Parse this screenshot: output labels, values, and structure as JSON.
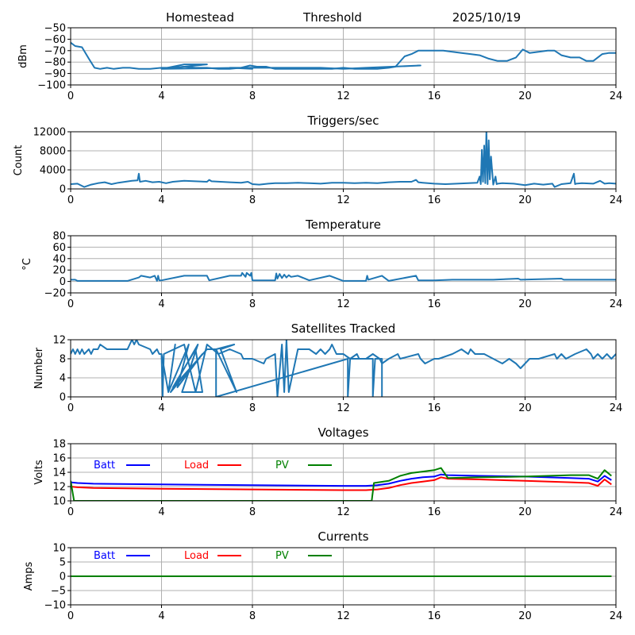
{
  "header": {
    "site": "Homestead",
    "threshold_label": "Threshold",
    "date": "2025/10/19"
  },
  "chart_data": [
    {
      "id": "signal",
      "type": "line",
      "title": "",
      "xlabel": "",
      "ylabel": "dBm",
      "xlim": [
        0,
        24
      ],
      "ylim": [
        -100,
        -50
      ],
      "xticks": [
        0,
        4,
        8,
        12,
        16,
        20,
        24
      ],
      "yticks": [
        -100,
        -90,
        -80,
        -70,
        -60,
        -50
      ],
      "ytick_labels": [
        "−100",
        "−90",
        "−80",
        "−70",
        "−60",
        "−50"
      ],
      "grid": true,
      "series": [
        {
          "name": "signal",
          "color": "#1f77b4",
          "x": [
            0,
            0.2,
            0.5,
            0.8,
            1.05,
            1.3,
            1.6,
            1.9,
            2.3,
            2.6,
            3.0,
            3.5,
            4.0,
            4.5,
            5.0,
            5.5,
            6.0,
            6.5,
            7.0,
            7.5,
            7.9,
            8.2,
            8.6,
            9.0,
            9.5,
            10.0,
            10.5,
            11.0,
            11.5,
            12.0,
            12.5,
            13.0,
            13.5,
            14.0,
            14.3,
            14.7,
            15.0,
            15.3,
            15.6,
            16.0,
            16.4,
            16.8,
            17.2,
            17.6,
            18.0,
            18.4,
            18.8,
            19.2,
            19.6,
            19.9,
            20.2,
            20.6,
            21.0,
            21.3,
            21.6,
            22.0,
            22.4,
            22.7,
            23.0,
            23.4,
            23.7,
            24.0
          ],
          "y": [
            -63,
            -66,
            -67,
            -77,
            -85,
            -86,
            -85,
            -86,
            -85,
            -85,
            -86,
            -86,
            -85,
            -85,
            -84,
            -85,
            -85,
            -86,
            -86,
            -85,
            -83,
            -84,
            -84,
            -86,
            -86,
            -86,
            -86,
            -86,
            -86,
            -85,
            -86,
            -86,
            -86,
            -85,
            -84,
            -75,
            -73,
            -70,
            -70,
            -70,
            -70,
            -71,
            -72,
            -73,
            -74,
            -77,
            -79,
            -79,
            -76,
            -69,
            -72,
            -71,
            -70,
            -70,
            -74,
            -76,
            -76,
            -79,
            -79,
            -73,
            -72,
            -72
          ]
        },
        {
          "name": "signal-overlap",
          "color": "#1f77b4",
          "x": [
            4.0,
            5.0,
            6.0,
            5.0,
            4.0,
            7.5,
            8.0,
            7.0,
            9.5,
            11.0,
            12.0,
            15.4,
            13.0,
            12.0
          ],
          "y": [
            -86,
            -82,
            -82,
            -84,
            -86,
            -85,
            -86,
            -85,
            -85,
            -85,
            -86,
            -83,
            -85,
            -86
          ]
        }
      ]
    },
    {
      "id": "triggers",
      "type": "line",
      "title": "Triggers/sec",
      "xlabel": "",
      "ylabel": "Count",
      "xlim": [
        0,
        24
      ],
      "ylim": [
        0,
        12000
      ],
      "xticks": [
        0,
        4,
        8,
        12,
        16,
        20,
        24
      ],
      "yticks": [
        0,
        4000,
        8000,
        12000
      ],
      "ytick_labels": [
        "0",
        "4000",
        "8000",
        "12000"
      ],
      "grid": true,
      "series": [
        {
          "name": "triggers",
          "color": "#1f77b4",
          "x": [
            0,
            0.3,
            0.6,
            0.9,
            1.2,
            1.5,
            1.8,
            2.1,
            2.4,
            2.7,
            2.95,
            3.0,
            3.05,
            3.3,
            3.6,
            3.9,
            4.2,
            4.5,
            5.0,
            5.5,
            6.0,
            6.1,
            6.2,
            6.6,
            7.0,
            7.5,
            7.8,
            8.0,
            8.3,
            8.7,
            9.0,
            9.5,
            10.0,
            10.5,
            11.0,
            11.5,
            12.0,
            12.5,
            13.0,
            13.5,
            14.0,
            14.5,
            15.0,
            15.2,
            15.3,
            15.5,
            16.0,
            16.5,
            17.0,
            17.5,
            17.9,
            18.0,
            18.05,
            18.1,
            18.15,
            18.2,
            18.25,
            18.3,
            18.35,
            18.4,
            18.45,
            18.5,
            18.6,
            18.7,
            18.75,
            18.8,
            19.0,
            19.5,
            20.0,
            20.4,
            20.8,
            21.2,
            21.3,
            21.6,
            22.0,
            22.15,
            22.2,
            22.25,
            22.5,
            23.0,
            23.3,
            23.5,
            23.7,
            24.0
          ],
          "y": [
            1000,
            1100,
            400,
            900,
            1200,
            1400,
            1000,
            1300,
            1500,
            1700,
            1800,
            3200,
            1500,
            1700,
            1400,
            1500,
            1200,
            1500,
            1700,
            1600,
            1500,
            1900,
            1600,
            1500,
            1400,
            1300,
            1500,
            1000,
            900,
            1100,
            1200,
            1200,
            1300,
            1200,
            1100,
            1300,
            1300,
            1200,
            1300,
            1200,
            1400,
            1500,
            1500,
            1900,
            1400,
            1300,
            1100,
            1000,
            1100,
            1200,
            1300,
            2600,
            1000,
            8200,
            1500,
            9100,
            1200,
            12400,
            1000,
            10200,
            2000,
            6800,
            900,
            2600,
            1000,
            1100,
            1200,
            1100,
            800,
            1100,
            900,
            1100,
            400,
            1000,
            1200,
            3200,
            1000,
            1100,
            1200,
            1100,
            1700,
            1100,
            1200,
            1100
          ]
        }
      ]
    },
    {
      "id": "temperature",
      "type": "line",
      "title": "Temperature",
      "xlabel": "",
      "ylabel": "°C",
      "xlim": [
        0,
        24
      ],
      "ylim": [
        -20,
        80
      ],
      "xticks": [
        0,
        4,
        8,
        12,
        16,
        20,
        24
      ],
      "yticks": [
        -20,
        0,
        20,
        40,
        60,
        80
      ],
      "ytick_labels": [
        "−20",
        "0",
        "20",
        "40",
        "60",
        "80"
      ],
      "grid": true,
      "series": [
        {
          "name": "temperature",
          "color": "#1f77b4",
          "x": [
            0,
            0.2,
            0.3,
            2.5,
            3.0,
            3.1,
            3.5,
            3.7,
            3.8,
            3.85,
            3.9,
            4.0,
            5.0,
            6.0,
            6.1,
            7.0,
            7.5,
            7.55,
            7.7,
            7.75,
            7.9,
            7.95,
            8.0,
            9.0,
            9.05,
            9.1,
            9.2,
            9.3,
            9.4,
            9.5,
            9.6,
            9.7,
            10.0,
            10.5,
            11.4,
            12.0,
            13.0,
            13.05,
            13.1,
            13.7,
            14.0,
            15.2,
            15.3,
            16.0,
            16.8,
            18.6,
            19.7,
            19.8,
            21.6,
            21.7,
            24.0
          ],
          "y": [
            3,
            3,
            1,
            1,
            7,
            10,
            7,
            10,
            1,
            10,
            2,
            2,
            10,
            10,
            2,
            10,
            10,
            15,
            8,
            15,
            10,
            15,
            2,
            2,
            14,
            5,
            13,
            6,
            12,
            7,
            11,
            8,
            10,
            2,
            10,
            1,
            1,
            10,
            3,
            10,
            1,
            10,
            2,
            2,
            3,
            3,
            5,
            3,
            5,
            3,
            3
          ]
        }
      ]
    },
    {
      "id": "satellites",
      "type": "line",
      "title": "Satellites Tracked",
      "xlabel": "",
      "ylabel": "Number",
      "xlim": [
        0,
        24
      ],
      "ylim": [
        0,
        12
      ],
      "xticks": [
        0,
        4,
        8,
        12,
        16,
        20,
        24
      ],
      "yticks": [
        0,
        4,
        8,
        12
      ],
      "ytick_labels": [
        "0",
        "4",
        "8",
        "12"
      ],
      "grid": true,
      "series": [
        {
          "name": "satellites",
          "color": "#1f77b4",
          "x": [
            0,
            0.1,
            0.2,
            0.3,
            0.4,
            0.5,
            0.6,
            0.8,
            0.9,
            1.0,
            1.2,
            1.3,
            1.6,
            2.5,
            2.6,
            2.7,
            2.8,
            2.9,
            3.0,
            3.5,
            3.6,
            3.8,
            3.9,
            4.0,
            4.05,
            4.1,
            5.0,
            5.5,
            6.0,
            6.5,
            7.0,
            7.5,
            7.6,
            8.0,
            8.5,
            8.6,
            9.0,
            9.1,
            9.3,
            9.4,
            9.5,
            9.6,
            10.0,
            10.5,
            10.8,
            11.0,
            11.2,
            11.4,
            11.5,
            11.7,
            11.8,
            12.0,
            12.3,
            12.6,
            12.7,
            13.0,
            13.3,
            13.6,
            13.7,
            14.0,
            14.4,
            14.5,
            15.3,
            15.4,
            15.6,
            16.0,
            16.2,
            16.8,
            17.2,
            17.5,
            17.6,
            17.8,
            18.2,
            18.6,
            19.0,
            19.3,
            19.6,
            19.8,
            20.0,
            20.2,
            20.4,
            20.6,
            21.3,
            21.4,
            21.6,
            21.8,
            22.2,
            22.7,
            22.9,
            23.0,
            23.2,
            23.4,
            23.6,
            23.8,
            24.0
          ],
          "y": [
            9,
            10,
            9,
            10,
            9,
            10,
            9,
            10,
            9,
            10,
            10,
            11,
            10,
            10,
            11,
            12,
            11,
            12,
            11,
            10,
            9,
            10,
            9,
            9,
            0,
            9,
            11,
            1,
            11,
            9,
            10,
            9,
            8,
            8,
            7,
            8,
            9,
            0,
            11,
            1,
            12,
            1,
            10,
            10,
            9,
            10,
            9,
            10,
            11,
            9,
            9,
            9,
            8,
            9,
            8,
            8,
            9,
            8,
            7,
            8,
            9,
            8,
            9,
            8,
            7,
            8,
            8,
            9,
            10,
            9,
            10,
            9,
            9,
            8,
            7,
            8,
            7,
            6,
            7,
            8,
            8,
            8,
            9,
            8,
            9,
            8,
            9,
            10,
            9,
            8,
            9,
            8,
            9,
            8,
            9
          ]
        },
        {
          "name": "satellites-overlap",
          "color": "#1f77b4",
          "x": [
            4.0,
            4.3,
            4.6,
            4.3,
            5.2,
            4.7,
            5.8,
            4.4,
            5.6,
            4.9,
            5.8,
            5.5,
            4.5,
            6.0,
            6.4,
            7.3,
            6.6,
            7.2,
            6.4,
            6.4,
            12.2,
            12.2,
            12.3,
            13.3,
            13.3,
            13.4,
            13.7,
            13.7
          ],
          "y": [
            9,
            1,
            11,
            1,
            11,
            2,
            9,
            1,
            11,
            1,
            1,
            10,
            2,
            10,
            10,
            1,
            10,
            11,
            10,
            0,
            8,
            0,
            8,
            8,
            0,
            8,
            8,
            0
          ]
        }
      ]
    },
    {
      "id": "voltages",
      "type": "line",
      "title": "Voltages",
      "xlabel": "",
      "ylabel": "Volts",
      "xlim": [
        0,
        24
      ],
      "ylim": [
        10,
        18
      ],
      "xticks": [
        0,
        4,
        8,
        12,
        16,
        20,
        24
      ],
      "yticks": [
        10,
        12,
        14,
        16,
        18
      ],
      "ytick_labels": [
        "10",
        "12",
        "14",
        "16",
        "18"
      ],
      "grid": true,
      "legend": {
        "placement": "top-left-inline",
        "entries": [
          "Batt",
          "Load",
          "PV"
        ]
      },
      "series": [
        {
          "name": "Batt",
          "color": "#0000ff",
          "x": [
            0,
            0.3,
            1,
            4,
            8,
            12,
            13,
            13.5,
            14,
            14.5,
            15,
            15.5,
            16,
            16.3,
            16.6,
            18,
            20,
            22,
            22.8,
            23.2,
            23.5,
            23.8
          ],
          "y": [
            12.6,
            12.5,
            12.4,
            12.3,
            12.2,
            12.1,
            12.1,
            12.2,
            12.4,
            12.8,
            13.1,
            13.3,
            13.4,
            13.7,
            13.6,
            13.5,
            13.4,
            13.2,
            13.1,
            12.7,
            13.5,
            12.9
          ]
        },
        {
          "name": "Load",
          "color": "#ff0000",
          "x": [
            0,
            0.3,
            1,
            4,
            8,
            12,
            13,
            13.5,
            14,
            14.5,
            15,
            15.5,
            16,
            16.3,
            16.6,
            18,
            20,
            22,
            22.8,
            23.2,
            23.5,
            23.8
          ],
          "y": [
            12.0,
            11.9,
            11.8,
            11.7,
            11.6,
            11.5,
            11.5,
            11.6,
            11.8,
            12.2,
            12.5,
            12.7,
            12.9,
            13.3,
            13.1,
            13.0,
            12.8,
            12.6,
            12.5,
            12.1,
            13.0,
            12.3
          ]
        },
        {
          "name": "PV",
          "color": "#008000",
          "x": [
            0,
            0.15,
            13.25,
            13.35,
            14.0,
            14.5,
            15.0,
            15.5,
            16.0,
            16.3,
            16.6,
            18,
            20,
            22,
            22.8,
            23.2,
            23.5,
            23.8
          ],
          "y": [
            12.8,
            10.0,
            10.0,
            12.5,
            12.8,
            13.5,
            13.9,
            14.1,
            14.3,
            14.6,
            13.2,
            13.3,
            13.4,
            13.6,
            13.6,
            13.1,
            14.3,
            13.5
          ]
        }
      ]
    },
    {
      "id": "currents",
      "type": "line",
      "title": "Currents",
      "xlabel": "",
      "ylabel": "Amps",
      "xlim": [
        0,
        24
      ],
      "ylim": [
        -10,
        10
      ],
      "xticks": [
        0,
        4,
        8,
        12,
        16,
        20,
        24
      ],
      "yticks": [
        -10,
        -5,
        0,
        5,
        10
      ],
      "ytick_labels": [
        "−10",
        "−5",
        "0",
        "5",
        "10"
      ],
      "grid": true,
      "legend": {
        "placement": "top-left-inline",
        "entries": [
          "Batt",
          "Load",
          "PV"
        ]
      },
      "series": [
        {
          "name": "Batt",
          "color": "#0000ff",
          "x": [
            0,
            23.8
          ],
          "y": [
            0,
            0
          ]
        },
        {
          "name": "Load",
          "color": "#ff0000",
          "x": [
            0,
            23.8
          ],
          "y": [
            0,
            0
          ]
        },
        {
          "name": "PV",
          "color": "#008000",
          "x": [
            0,
            23.8
          ],
          "y": [
            0,
            0
          ]
        }
      ]
    }
  ]
}
